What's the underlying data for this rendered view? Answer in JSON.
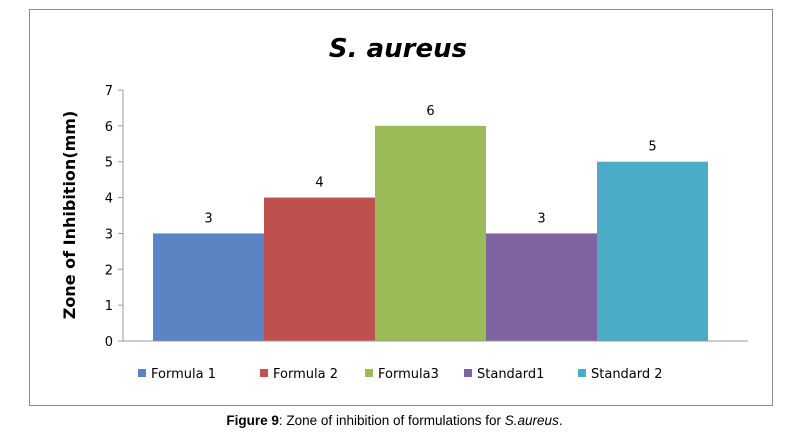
{
  "chart_data": {
    "type": "bar",
    "title": "S. aureus",
    "ylabel": "Zone of Inhibition(mm)",
    "xlabel": "",
    "ylim": [
      0,
      7
    ],
    "yticks": [
      0,
      1,
      2,
      3,
      4,
      5,
      6,
      7
    ],
    "grid": false,
    "legend_position": "bottom",
    "series": [
      {
        "name": "Formula 1",
        "value": 3,
        "color": "#5B84C4"
      },
      {
        "name": "Formula 2",
        "value": 4,
        "color": "#C0504D"
      },
      {
        "name": "Formula3",
        "value": 6,
        "color": "#9BBB59"
      },
      {
        "name": "Standard1",
        "value": 3,
        "color": "#8064A2"
      },
      {
        "name": "Standard 2",
        "value": 5,
        "color": "#4BACC6"
      }
    ]
  },
  "caption": {
    "label": "Figure 9",
    "text_before": ": Zone of inhibition of formulations for ",
    "italic": "S.aureus",
    "text_after": "."
  }
}
